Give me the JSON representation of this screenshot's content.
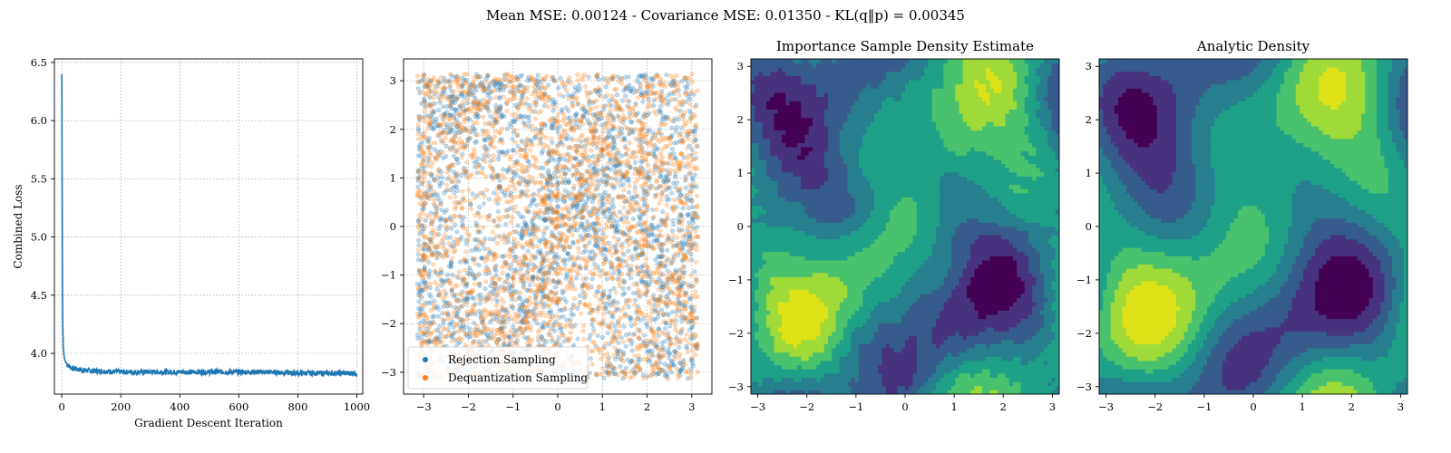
{
  "suptitle": "Mean MSE: 0.00124 - Covariance MSE: 0.01350 - KL(q‖p) = 0.00345",
  "colors": {
    "loss_line": "#1f77b4",
    "rejection": "#1f77b4",
    "dequantization": "#ff7f0e",
    "viridis_levels": [
      "#440154",
      "#46327e",
      "#365c8d",
      "#277f8e",
      "#1fa187",
      "#4ac16d",
      "#a0da39",
      "#dde318"
    ]
  },
  "chart_data": [
    {
      "type": "line",
      "title": "",
      "xlabel": "Gradient Descent Iteration",
      "ylabel": "Combined Loss",
      "xlim": [
        -25,
        1020
      ],
      "ylim": [
        3.65,
        6.53
      ],
      "xticks": [
        0,
        200,
        400,
        600,
        800,
        1000
      ],
      "yticks": [
        4.0,
        4.5,
        5.0,
        5.5,
        6.0,
        6.5
      ],
      "grid": true,
      "series": [
        {
          "x": [
            0,
            1,
            2,
            3,
            5,
            8,
            12,
            20,
            35,
            60,
            100,
            200,
            300,
            400,
            500,
            600,
            700,
            800,
            900,
            1000
          ],
          "values": [
            6.4,
            5.6,
            4.8,
            4.3,
            4.05,
            3.97,
            3.93,
            3.9,
            3.87,
            3.86,
            3.85,
            3.84,
            3.84,
            3.84,
            3.84,
            3.84,
            3.84,
            3.83,
            3.83,
            3.83
          ]
        }
      ]
    },
    {
      "type": "scatter",
      "title": "",
      "xlim": [
        -3.45,
        3.45
      ],
      "ylim": [
        -3.45,
        3.45
      ],
      "xticks": [
        -3,
        -2,
        -1,
        0,
        1,
        2,
        3
      ],
      "yticks": [
        -3,
        -2,
        -1,
        0,
        1,
        2,
        3
      ],
      "grid": true,
      "legend_placement": "lower-left",
      "series": [
        {
          "name": "Rejection Sampling"
        },
        {
          "name": "Dequantization Sampling"
        }
      ]
    },
    {
      "type": "heatmap",
      "title": "Importance Sample Density Estimate",
      "xlim": [
        -3.14,
        3.14
      ],
      "ylim": [
        -3.14,
        3.14
      ],
      "xticks": [
        -3,
        -2,
        -1,
        0,
        1,
        2,
        3
      ],
      "yticks": [
        -3,
        -2,
        -1,
        0,
        1,
        2,
        3
      ]
    },
    {
      "type": "heatmap",
      "title": "Analytic Density",
      "xlim": [
        -3.14,
        3.14
      ],
      "ylim": [
        -3.14,
        3.14
      ],
      "xticks": [
        -3,
        -2,
        -1,
        0,
        1,
        2,
        3
      ],
      "yticks": [
        -3,
        -2,
        -1,
        0,
        1,
        2,
        3
      ]
    }
  ]
}
